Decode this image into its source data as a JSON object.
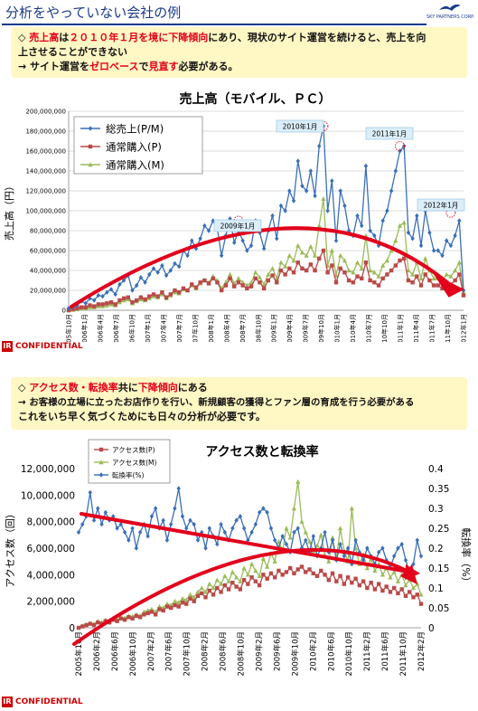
{
  "slide1": {
    "title": "分析をやっていない会社の例",
    "brand_text": "SKY PARTNERS CORP.",
    "message": {
      "line1_a": "◇ ",
      "line1_b": "売上高",
      "line1_c": "は",
      "line1_d": "２０１０年１月を境に下降傾向",
      "line1_e": "にあり、現状のサイト運営を続けると、売上を向",
      "line2": "上させることができない",
      "line3_a": "→ サイト運営を",
      "line3_b": "ゼロベース",
      "line3_c": "で",
      "line3_d": "見直す",
      "line3_e": "必要がある。"
    },
    "confidential": "CONFIDENTIAL",
    "confidential_mark": "IR"
  },
  "slide2": {
    "message": {
      "line1_a": "◇ ",
      "line1_b": "アクセス数・転換率",
      "line1_c": "共に",
      "line1_d": "下降傾向",
      "line1_e": "にある",
      "line2": "→ お客様の立場に立ったお店作りを行い、新規顧客の獲得とファン層の育成を行う必要がある",
      "line3": "これをいち早く気づくためにも日々の分析が必要です。"
    },
    "confidential": "CONFIDENTIAL",
    "confidential_mark": "IR"
  },
  "colors": {
    "blue": "#3a6fb8",
    "red": "#b94a48",
    "green": "#9bbb59",
    "arrow": "#e3001b",
    "title_blue": "#1a3a8c"
  },
  "chart_data": [
    {
      "type": "line",
      "title": "売上高（モバイル、ＰＣ）",
      "ylabel": "売上高（円）",
      "ylim": [
        0,
        200000000
      ],
      "yticks": [
        "0",
        "20,000,000",
        "40,000,000",
        "60,000,000",
        "80,000,000",
        "100,000,000",
        "120,000,000",
        "140,000,000",
        "160,000,000",
        "180,000,000",
        "200,000,000"
      ],
      "xticklabels": [
        "2005年10月",
        "2006年1月",
        "2006年4月",
        "2006年7月",
        "2006年10月",
        "2007年1月",
        "2007年4月",
        "2007年7月",
        "2007年10月",
        "2008年1月",
        "2008年4月",
        "2008年7月",
        "2008年10月",
        "2009年1月",
        "2009年4月",
        "2009年7月",
        "2009年10月",
        "2010年1月",
        "2010年4月",
        "2010年7月",
        "2010年10月",
        "2011年1月",
        "2011年4月",
        "2011年7月",
        "2011年10月",
        "2012年1月"
      ],
      "x_start": "2005-10",
      "grid": true,
      "legend_position": "top-left",
      "annotations": [
        "2009年1月",
        "2010年1月",
        "2011年1月",
        "2012年1月"
      ],
      "series": [
        {
          "name": "総売上(P/M)",
          "color": "#3a6fb8",
          "marker": "diamond",
          "values": [
            2000000,
            3000000,
            5000000,
            9000000,
            7000000,
            12000000,
            10000000,
            15000000,
            14000000,
            18000000,
            21000000,
            16000000,
            26000000,
            30000000,
            35000000,
            20000000,
            25000000,
            33000000,
            28000000,
            36000000,
            42000000,
            38000000,
            45000000,
            35000000,
            40000000,
            47000000,
            44000000,
            60000000,
            55000000,
            70000000,
            62000000,
            72000000,
            85000000,
            80000000,
            90000000,
            82000000,
            55000000,
            75000000,
            92000000,
            68000000,
            80000000,
            70000000,
            60000000,
            65000000,
            90000000,
            78000000,
            62000000,
            80000000,
            95000000,
            72000000,
            105000000,
            100000000,
            120000000,
            110000000,
            150000000,
            125000000,
            120000000,
            140000000,
            115000000,
            165000000,
            185000000,
            100000000,
            130000000,
            70000000,
            120000000,
            105000000,
            80000000,
            75000000,
            95000000,
            85000000,
            145000000,
            80000000,
            75000000,
            65000000,
            90000000,
            100000000,
            120000000,
            140000000,
            160000000,
            165000000,
            78000000,
            72000000,
            95000000,
            65000000,
            100000000,
            78000000,
            60000000,
            60000000,
            55000000,
            70000000,
            65000000,
            75000000,
            90000000,
            20000000
          ]
        },
        {
          "name": "通常購入(P)",
          "color": "#b94a48",
          "marker": "square",
          "values": [
            0,
            1000000,
            2000000,
            3000000,
            3000000,
            5000000,
            4000000,
            6000000,
            6000000,
            7000000,
            8000000,
            6000000,
            10000000,
            12000000,
            13000000,
            8000000,
            10000000,
            13000000,
            11000000,
            14000000,
            16000000,
            14000000,
            18000000,
            13000000,
            16000000,
            20000000,
            18000000,
            22000000,
            20000000,
            26000000,
            23000000,
            28000000,
            30000000,
            27000000,
            32000000,
            28000000,
            20000000,
            25000000,
            32000000,
            24000000,
            28000000,
            25000000,
            22000000,
            24000000,
            32000000,
            28000000,
            22000000,
            30000000,
            35000000,
            28000000,
            40000000,
            36000000,
            42000000,
            38000000,
            48000000,
            42000000,
            40000000,
            46000000,
            40000000,
            52000000,
            60000000,
            38000000,
            45000000,
            28000000,
            42000000,
            38000000,
            30000000,
            28000000,
            34000000,
            32000000,
            48000000,
            30000000,
            28000000,
            25000000,
            32000000,
            36000000,
            40000000,
            45000000,
            50000000,
            52000000,
            30000000,
            28000000,
            34000000,
            25000000,
            36000000,
            30000000,
            25000000,
            25000000,
            22000000,
            28000000,
            26000000,
            30000000,
            36000000,
            15000000
          ]
        },
        {
          "name": "通常購入(M)",
          "color": "#9bbb59",
          "marker": "triangle",
          "values": [
            0,
            500000,
            1000000,
            2000000,
            2000000,
            3000000,
            3000000,
            4000000,
            4000000,
            5000000,
            6000000,
            5000000,
            8000000,
            10000000,
            11000000,
            7000000,
            9000000,
            11000000,
            10000000,
            12000000,
            14000000,
            13000000,
            16000000,
            12000000,
            15000000,
            18000000,
            17000000,
            21000000,
            20000000,
            25000000,
            22000000,
            27000000,
            30000000,
            28000000,
            34000000,
            30000000,
            22000000,
            28000000,
            36000000,
            27000000,
            32000000,
            28000000,
            25000000,
            28000000,
            38000000,
            33000000,
            26000000,
            36000000,
            42000000,
            32000000,
            48000000,
            44000000,
            55000000,
            50000000,
            65000000,
            58000000,
            55000000,
            64000000,
            55000000,
            85000000,
            112000000,
            45000000,
            60000000,
            35000000,
            55000000,
            50000000,
            40000000,
            38000000,
            48000000,
            42000000,
            75000000,
            40000000,
            38000000,
            34000000,
            45000000,
            50000000,
            60000000,
            70000000,
            85000000,
            88000000,
            40000000,
            36000000,
            48000000,
            32000000,
            52000000,
            40000000,
            32000000,
            32000000,
            30000000,
            36000000,
            34000000,
            40000000,
            48000000,
            18000000
          ]
        }
      ]
    },
    {
      "type": "line",
      "title": "アクセス数と転換率",
      "ylabel": "アクセス数（回）",
      "y2label": "転換率（%）",
      "ylim": [
        0,
        12000000
      ],
      "y2lim": [
        0,
        0.4
      ],
      "yticks": [
        "0",
        "2,000,000",
        "4,000,000",
        "6,000,000",
        "8,000,000",
        "10,000,000",
        "12,000,000"
      ],
      "y2ticks": [
        "0",
        "0.05",
        "0.1",
        "0.15",
        "0.2",
        "0.25",
        "0.3",
        "0.35",
        "0.4"
      ],
      "xticklabels": [
        "2005年10月",
        "2006年2月",
        "2006年6月",
        "2006年10月",
        "2007年2月",
        "2007年6月",
        "2007年10月",
        "2008年2月",
        "2008年6月",
        "2008年10月",
        "2009年2月",
        "2009年6月",
        "2009年10月",
        "2010年2月",
        "2010年6月",
        "2010年10月",
        "2011年2月",
        "2011年6月",
        "2011年10月",
        "2012年2月"
      ],
      "grid": false,
      "legend_position": "top-left",
      "series": [
        {
          "name": "アクセス数(P)",
          "color": "#b94a48",
          "marker": "square",
          "axis": "left",
          "values": [
            0,
            100000,
            200000,
            300000,
            200000,
            400000,
            300000,
            500000,
            400000,
            600000,
            500000,
            700000,
            600000,
            800000,
            700000,
            900000,
            800000,
            1000000,
            1100000,
            1200000,
            1000000,
            1400000,
            1300000,
            1600000,
            1500000,
            1700000,
            1600000,
            1900000,
            1800000,
            2200000,
            2000000,
            2400000,
            2600000,
            2300000,
            2800000,
            2500000,
            3000000,
            2700000,
            3200000,
            2900000,
            3400000,
            3100000,
            2900000,
            3600000,
            3300000,
            3800000,
            3500000,
            3200000,
            4000000,
            3700000,
            4100000,
            3800000,
            4300000,
            4000000,
            4200000,
            4500000,
            4100000,
            4400000,
            4600000,
            4200000,
            4400000,
            4100000,
            3900000,
            4300000,
            4000000,
            3600000,
            4100000,
            3500000,
            3900000,
            3300000,
            3800000,
            3400000,
            3700000,
            3200000,
            3500000,
            3000000,
            3400000,
            2900000,
            3300000,
            2800000,
            3100000,
            2700000,
            3000000,
            2600000,
            2900000,
            2400000,
            2700000,
            2300000,
            2500000,
            1800000
          ]
        },
        {
          "name": "アクセス数(M)",
          "color": "#9bbb59",
          "marker": "triangle",
          "axis": "left",
          "values": [
            0,
            150000,
            250000,
            350000,
            300000,
            500000,
            400000,
            600000,
            500000,
            700000,
            600000,
            800000,
            750000,
            900000,
            850000,
            1000000,
            900000,
            1200000,
            1300000,
            1400000,
            1200000,
            1600000,
            1500000,
            1800000,
            1700000,
            2000000,
            1900000,
            2200000,
            2100000,
            2500000,
            2300000,
            2700000,
            3000000,
            2700000,
            3300000,
            3000000,
            3600000,
            3300000,
            3900000,
            3500000,
            4200000,
            3800000,
            3500000,
            4500000,
            4000000,
            4800000,
            4300000,
            3900000,
            5200000,
            4600000,
            5600000,
            5000000,
            6500000,
            5800000,
            7500000,
            6800000,
            9000000,
            11000000,
            8000000,
            7200000,
            6500000,
            5800000,
            6200000,
            7000000,
            5500000,
            5000000,
            6800000,
            5200000,
            7500000,
            5800000,
            5000000,
            9000000,
            6000000,
            4800000,
            5500000,
            4500000,
            5200000,
            4300000,
            4800000,
            4000000,
            4500000,
            3800000,
            4200000,
            3500000,
            4000000,
            3200000,
            3600000,
            3000000,
            3300000,
            2500000
          ]
        },
        {
          "name": "転換率(%)",
          "color": "#3a6fb8",
          "marker": "diamond",
          "axis": "right",
          "values": [
            0.24,
            0.26,
            0.28,
            0.34,
            0.27,
            0.3,
            0.26,
            0.29,
            0.27,
            0.28,
            0.25,
            0.26,
            0.24,
            0.22,
            0.25,
            0.2,
            0.24,
            0.26,
            0.23,
            0.28,
            0.3,
            0.25,
            0.27,
            0.22,
            0.26,
            0.3,
            0.35,
            0.28,
            0.25,
            0.27,
            0.26,
            0.22,
            0.24,
            0.2,
            0.25,
            0.23,
            0.21,
            0.26,
            0.24,
            0.22,
            0.25,
            0.27,
            0.28,
            0.25,
            0.22,
            0.24,
            0.26,
            0.29,
            0.3,
            0.29,
            0.25,
            0.22,
            0.2,
            0.23,
            0.21,
            0.19,
            0.24,
            0.25,
            0.2,
            0.22,
            0.19,
            0.23,
            0.18,
            0.2,
            0.24,
            0.19,
            0.22,
            0.17,
            0.21,
            0.18,
            0.2,
            0.16,
            0.22,
            0.19,
            0.17,
            0.2,
            0.18,
            0.16,
            0.19,
            0.2,
            0.17,
            0.15,
            0.18,
            0.2,
            0.21,
            0.17,
            0.14,
            0.16,
            0.22,
            0.18
          ]
        }
      ]
    }
  ]
}
